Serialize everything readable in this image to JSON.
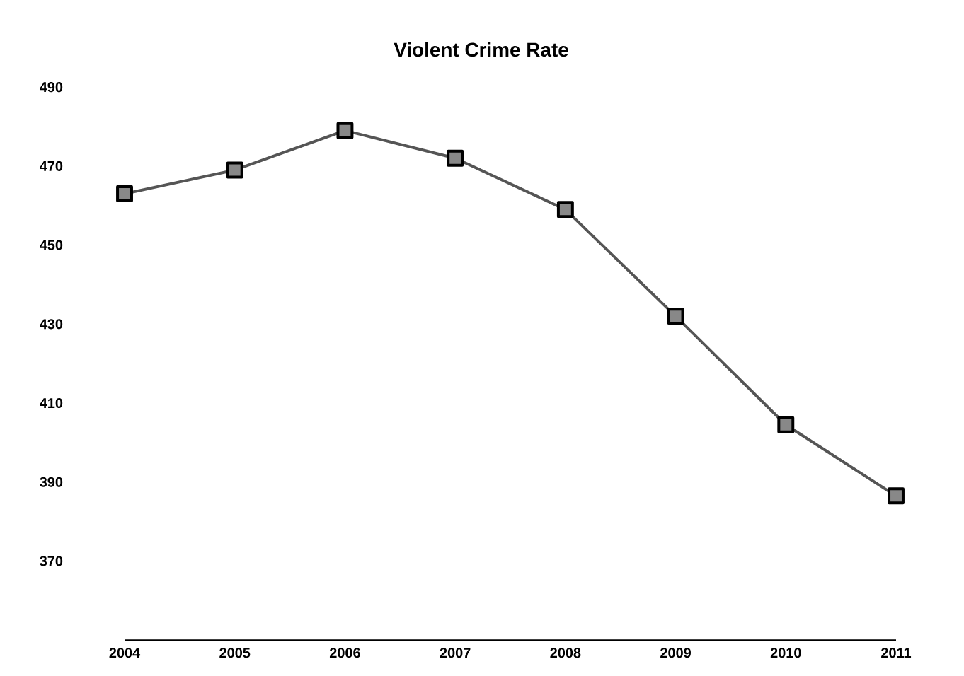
{
  "chart_data": {
    "type": "line",
    "title": "Violent Crime Rate",
    "categories": [
      "2004",
      "2005",
      "2006",
      "2007",
      "2008",
      "2009",
      "2010",
      "2011"
    ],
    "values": [
      463,
      469,
      479,
      472,
      459,
      432,
      404.5,
      386.5
    ],
    "color": "#555555",
    "marker": "square",
    "line_style": "solid",
    "ylim": [
      350,
      490
    ],
    "yticks": [
      370,
      390,
      410,
      430,
      450,
      470,
      490
    ],
    "grid": false
  }
}
